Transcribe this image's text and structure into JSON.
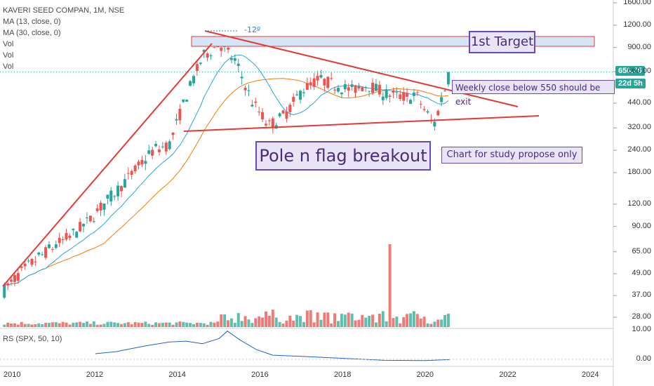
{
  "chart_data": {
    "type": "candlestick",
    "title": "KAVERI SEED COMPAN, 1M, NSE",
    "indicators": [
      "MA (13, close, 0)",
      "MA (30, close, 0)",
      "Vol",
      "Vol",
      "Vol"
    ],
    "y_scale": "log",
    "y_ticks": [
      "1600.00",
      "1200.00",
      "900.00",
      "660.00",
      "440.00",
      "320.00",
      "240.00",
      "180.00",
      "120.00",
      "90.00",
      "65.00",
      "49.00",
      "37.00",
      "28.00"
    ],
    "x_ticks": [
      "2010",
      "2012",
      "2014",
      "2016",
      "2018",
      "2020",
      "2022",
      "2024"
    ],
    "price_series_approx": {
      "x": [
        2009.8,
        2010.2,
        2010.6,
        2011.0,
        2011.4,
        2011.8,
        2012.2,
        2012.6,
        2013.0,
        2013.4,
        2013.8,
        2014.2,
        2014.6,
        2015.0,
        2015.4,
        2015.8,
        2016.2,
        2016.6,
        2017.0,
        2017.4,
        2017.8,
        2018.2,
        2018.6,
        2019.0,
        2019.4,
        2019.8,
        2020.2,
        2020.4,
        2020.6
      ],
      "close": [
        40,
        50,
        60,
        70,
        80,
        95,
        120,
        150,
        190,
        240,
        260,
        480,
        800,
        950,
        750,
        450,
        330,
        380,
        520,
        600,
        560,
        520,
        560,
        500,
        480,
        480,
        330,
        480,
        650
      ]
    },
    "current_price": "656.75",
    "countdown": "22d 5h",
    "rs_panel": {
      "label": "RS (SPX, 50, 10)",
      "y_ticks": [
        "10.00",
        "0.00"
      ]
    },
    "annotations": {
      "angle": "-12º",
      "target": "1st Target",
      "exit": "Weekly close below 550 should be exit",
      "breakout": "Pole n flag breakout",
      "study": "Chart for study propose only"
    },
    "colors": {
      "up": "#26a69a",
      "down": "#ef5350",
      "trend": "#e53935",
      "ma13": "#26a6d9",
      "ma30": "#f57c00",
      "rs": "#1e63c6",
      "annotation_text": "#4b2a7a",
      "target_fill": "#d6e4f7"
    }
  }
}
